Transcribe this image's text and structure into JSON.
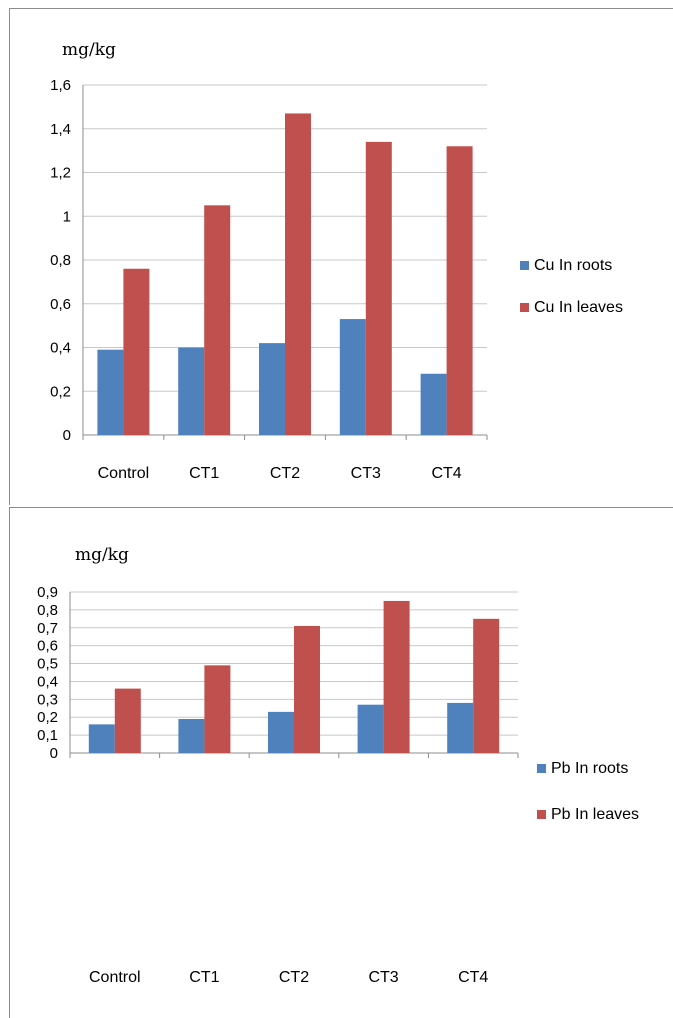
{
  "chart_data": [
    {
      "type": "bar",
      "title": "",
      "ylabel": "mg/kg",
      "xlabel": "",
      "categories": [
        "Control",
        "CT1",
        "CT2",
        "CT3",
        "CT4"
      ],
      "ylim": [
        0,
        1.6
      ],
      "yticks": [
        "0",
        "0,2",
        "0,4",
        "0,6",
        "0,8",
        "1",
        "1,2",
        "1,4",
        "1,6"
      ],
      "grid": true,
      "legend_position": "right",
      "series": [
        {
          "name": "Cu  In roots",
          "color": "#4f81bd",
          "values": [
            0.39,
            0.4,
            0.42,
            0.53,
            0.28
          ]
        },
        {
          "name": "Cu  In leaves",
          "color": "#c0504d",
          "values": [
            0.76,
            1.05,
            1.47,
            1.34,
            1.32
          ]
        }
      ]
    },
    {
      "type": "bar",
      "title": "",
      "ylabel": "mg/kg",
      "xlabel": "",
      "categories": [
        "Control",
        "CT1",
        "CT2",
        "CT3",
        "CT4"
      ],
      "ylim": [
        0,
        0.9
      ],
      "yticks": [
        "0",
        "0,1",
        "0,2",
        "0,3",
        "0,4",
        "0,5",
        "0,6",
        "0,7",
        "0,8",
        "0,9"
      ],
      "grid": true,
      "legend_position": "right",
      "series": [
        {
          "name": "Pb In roots",
          "color": "#4f81bd",
          "values": [
            0.16,
            0.19,
            0.23,
            0.27,
            0.28
          ]
        },
        {
          "name": "Pb In leaves",
          "color": "#c0504d",
          "values": [
            0.36,
            0.49,
            0.71,
            0.85,
            0.75
          ]
        }
      ]
    }
  ]
}
